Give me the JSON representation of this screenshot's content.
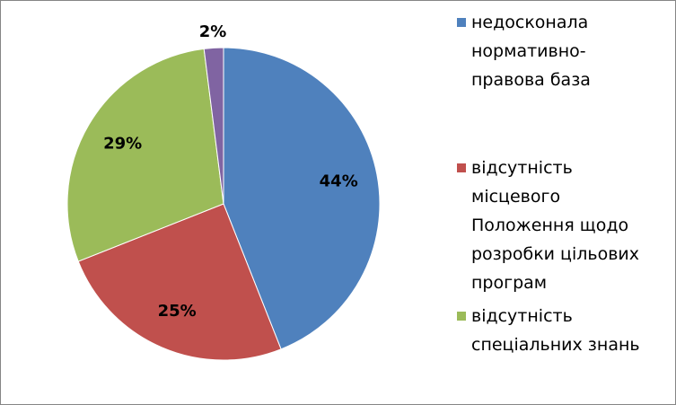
{
  "chart_data": {
    "type": "pie",
    "categories": [
      "недосконала нормативно-правова база",
      "відсутність місцевого Положення щодо розробки цільових програм",
      "відсутність спеціальних знань",
      null
    ],
    "values": [
      44,
      25,
      29,
      2
    ],
    "value_labels": [
      "44%",
      "25%",
      "29%",
      "2%"
    ],
    "colors": [
      "#4f81bd",
      "#c0504d",
      "#9bbb59",
      "#8064a2"
    ],
    "legend": "right"
  }
}
